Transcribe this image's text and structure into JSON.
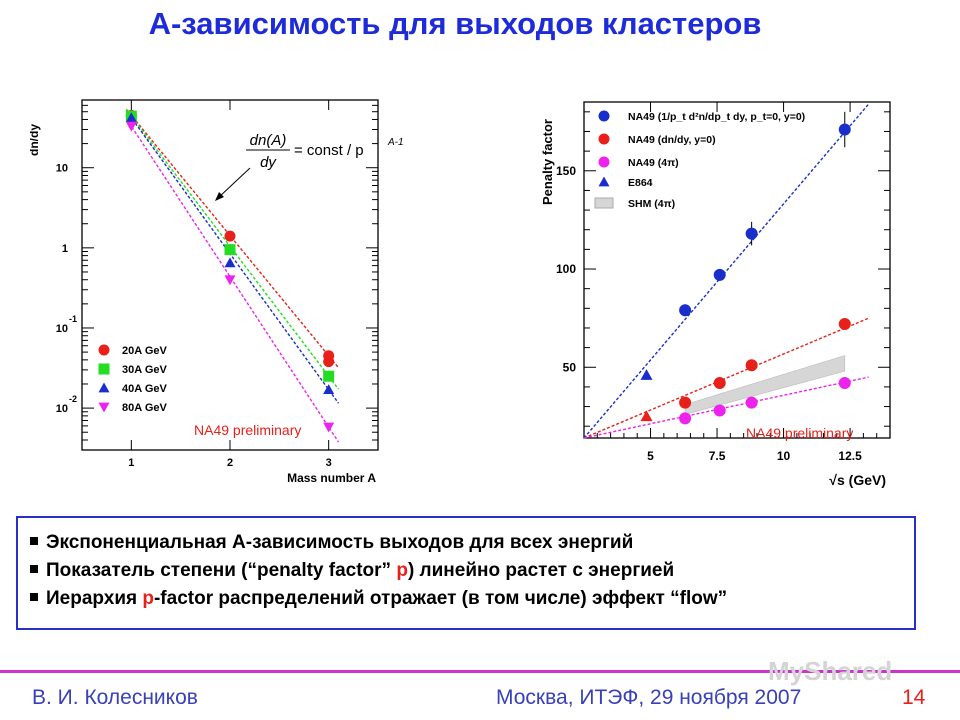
{
  "slide": {
    "title": "А-зависимость для выходов кластеров",
    "bullets": [
      {
        "text": "Экспоненциальная A-зависимость выходов для всех энергий"
      },
      {
        "pre": "Показатель степени (“penalty factor” ",
        "hl": "p",
        "post": ") линейно растет с энергией"
      },
      {
        "pre": "Иерархия ",
        "hl": "p",
        "post": "-factor распределений отражает (в том числе) эффект “flow”"
      }
    ],
    "footer": {
      "author": "В. И. Колесников",
      "place": "Москва, ИТЭФ, 29 ноября 2007",
      "page": "14"
    },
    "watermark": "MyShared"
  },
  "chart_data": [
    {
      "type": "scatter",
      "ylabel": "dn/dy",
      "xlabel": "Mass number A",
      "xticks": [
        "1",
        "2",
        "3"
      ],
      "yticks": [
        {
          "base": "10",
          "exp": "",
          "v": 10
        },
        {
          "base": "1",
          "exp": "",
          "v": 1
        },
        {
          "base": "10",
          "exp": "-1",
          "v": 0.1
        },
        {
          "base": "10",
          "exp": "-2",
          "v": 0.01
        }
      ],
      "xlim": [
        0.5,
        3.5
      ],
      "ylim": [
        0.003,
        70
      ],
      "log_y": true,
      "formula": {
        "num": "dn(A)",
        "den": "dy",
        "rhs": "= const / p",
        "exp": "A-1"
      },
      "annotation": "NA49 preliminary",
      "legend_position": "bottom-left",
      "series": [
        {
          "name": "20A GeV",
          "marker": "circle",
          "color": "#e8201a",
          "x": [
            1,
            2,
            3
          ],
          "y": [
            45,
            1.4,
            0.045
          ],
          "extra": [
            {
              "x": 3,
              "y": 0.038
            }
          ]
        },
        {
          "name": "30A GeV",
          "marker": "square",
          "color": "#22dd22",
          "x": [
            1,
            2,
            3
          ],
          "y": [
            44,
            0.95,
            0.025
          ]
        },
        {
          "name": "40A GeV",
          "marker": "triangle-up",
          "color": "#1a2ecc",
          "x": [
            1,
            2,
            3
          ],
          "y": [
            42,
            0.65,
            0.017
          ]
        },
        {
          "name": "80A GeV",
          "marker": "triangle-down",
          "color": "#ee22ee",
          "x": [
            1,
            2,
            3
          ],
          "y": [
            33,
            0.4,
            0.0058
          ]
        }
      ]
    },
    {
      "type": "scatter",
      "ylabel": "Penalty factor",
      "xlabel": "√s (GeV)",
      "xticks": [
        5,
        7.5,
        10,
        12.5
      ],
      "yticks": [
        50,
        100,
        150
      ],
      "xlim": [
        2.5,
        14
      ],
      "ylim": [
        14,
        185
      ],
      "annotation": "NA49 preliminary",
      "legend_position": "top",
      "series": [
        {
          "name": "NA49 (1/p_t d²n/dp_t dy, p_t=0, y=0)",
          "marker": "circle",
          "color": "#1a2ecc",
          "x": [
            6.3,
            7.6,
            8.8,
            12.3
          ],
          "y": [
            79,
            97,
            118,
            171
          ],
          "err": [
            3,
            3,
            6,
            9
          ]
        },
        {
          "name": "NA49 (dn/dy, y=0)",
          "marker": "circle",
          "color": "#e8201a",
          "x": [
            6.3,
            7.6,
            8.8,
            12.3
          ],
          "y": [
            32,
            42,
            51,
            72
          ]
        },
        {
          "name": "NA49 (4π)",
          "marker": "circle",
          "color": "#ee22ee",
          "x": [
            6.3,
            7.6,
            8.8,
            12.3
          ],
          "y": [
            24,
            28,
            32,
            42
          ]
        },
        {
          "name": "E864",
          "marker": "triangle-up",
          "color": "#1a2ecc",
          "x": [
            4.85
          ],
          "y": [
            46
          ]
        },
        {
          "name": "SHM (4π)",
          "marker": "band",
          "color": "#bbbbbb",
          "x": [
            6.3,
            12.3
          ],
          "y_low": [
            26,
            48
          ],
          "y_high": [
            31,
            56
          ]
        }
      ],
      "extra_points": [
        {
          "x": 4.85,
          "y": 25,
          "marker": "triangle-up",
          "color": "#e8201a"
        }
      ],
      "fits": [
        {
          "color": "#1a2ecc",
          "x": [
            2.5,
            13.2
          ],
          "y": [
            14,
            184
          ]
        },
        {
          "color": "#e8201a",
          "x": [
            2.5,
            13.2
          ],
          "y": [
            14,
            75
          ]
        },
        {
          "color": "#ee22ee",
          "x": [
            2.5,
            13.2
          ],
          "y": [
            14,
            45
          ]
        }
      ]
    }
  ]
}
